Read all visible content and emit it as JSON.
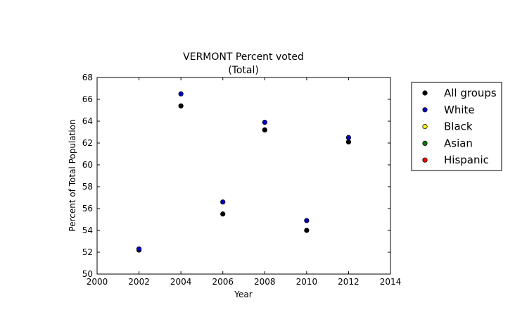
{
  "chart_data": {
    "type": "scatter",
    "title": "VERMONT Percent voted",
    "subtitle": "(Total)",
    "xlabel": "Year",
    "ylabel": "Percent of Total Population",
    "xlim": [
      2000,
      2014
    ],
    "ylim": [
      50,
      68
    ],
    "xticks": [
      2000,
      2002,
      2004,
      2006,
      2008,
      2010,
      2012,
      2014
    ],
    "yticks": [
      50,
      52,
      54,
      56,
      58,
      60,
      62,
      64,
      66,
      68
    ],
    "grid": false,
    "legend_position": "outside-right",
    "series": [
      {
        "name": "All groups",
        "color": "#000000",
        "x": [
          2002,
          2004,
          2006,
          2008,
          2010,
          2012
        ],
        "y": [
          52.2,
          65.4,
          55.5,
          63.2,
          54.0,
          62.1
        ]
      },
      {
        "name": "White",
        "color": "#0000cc",
        "x": [
          2002,
          2004,
          2006,
          2008,
          2010,
          2012
        ],
        "y": [
          52.3,
          66.5,
          56.6,
          63.9,
          54.9,
          62.5
        ]
      },
      {
        "name": "Black",
        "color": "#ffff00",
        "x": [],
        "y": []
      },
      {
        "name": "Asian",
        "color": "#008000",
        "x": [],
        "y": []
      },
      {
        "name": "Hispanic",
        "color": "#ff0000",
        "x": [],
        "y": []
      }
    ]
  }
}
